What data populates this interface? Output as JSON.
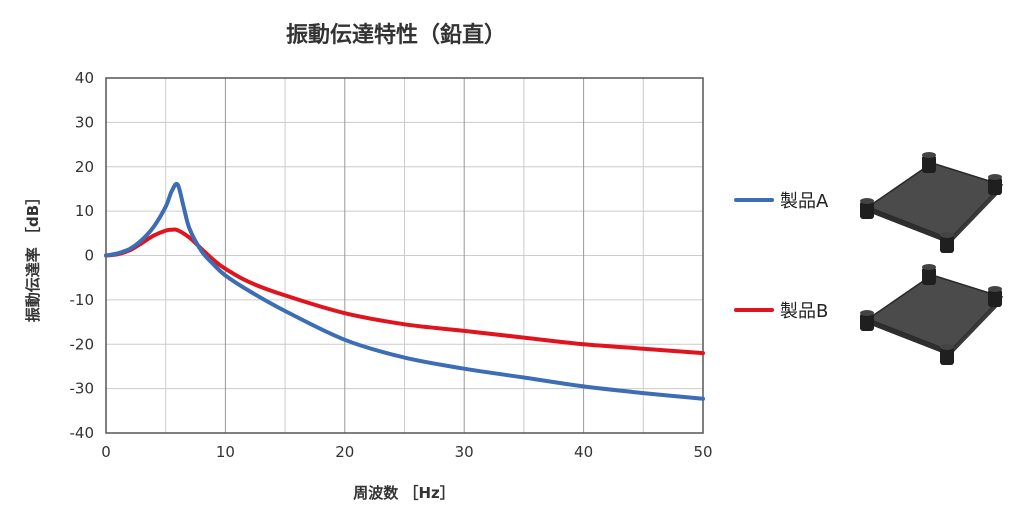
{
  "chart_data": {
    "type": "line",
    "title": "振動伝達特性（鉛直）",
    "xlabel": "周波数 ［Hz］",
    "ylabel": "振動伝達率 ［dB］",
    "xlim": [
      0,
      50
    ],
    "ylim": [
      -40,
      40
    ],
    "xticks": [
      0,
      10,
      20,
      30,
      40,
      50
    ],
    "yticks": [
      40,
      30,
      20,
      10,
      0,
      -10,
      -20,
      -30,
      -40
    ],
    "grid": true,
    "legend_position": "right",
    "series": [
      {
        "name": "製品A",
        "color": "#3d6db5",
        "x": [
          0,
          1,
          2,
          3,
          4,
          5,
          5.5,
          6,
          6.5,
          7,
          8,
          9,
          10,
          12,
          15,
          20,
          25,
          30,
          35,
          40,
          45,
          50
        ],
        "y": [
          0,
          0.5,
          1.5,
          3.5,
          6.5,
          11,
          14.5,
          16,
          11,
          6,
          1,
          -2,
          -4.5,
          -8,
          -12.5,
          -19,
          -23,
          -25.5,
          -27.5,
          -29.5,
          -31,
          -32.3
        ]
      },
      {
        "name": "製品B",
        "color": "#e0141e",
        "x": [
          0,
          1,
          2,
          3,
          4,
          5,
          5.5,
          6,
          7,
          8,
          9,
          10,
          12,
          15,
          20,
          25,
          30,
          35,
          40,
          45,
          50
        ],
        "y": [
          0,
          0.3,
          1.2,
          2.8,
          4.5,
          5.6,
          5.8,
          5.7,
          4,
          1.5,
          -1,
          -3,
          -6,
          -9,
          -13,
          -15.5,
          -17,
          -18.5,
          -20,
          -21,
          -22
        ]
      }
    ]
  }
}
